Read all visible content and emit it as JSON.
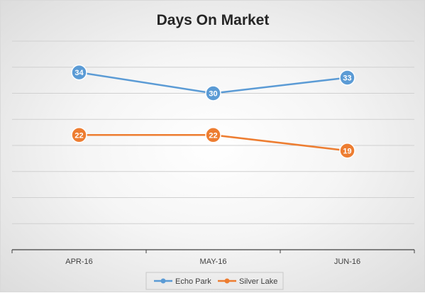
{
  "chart_data": {
    "type": "line",
    "title": "Days On Market",
    "categories": [
      "APR-16",
      "MAY-16",
      "JUN-16"
    ],
    "series": [
      {
        "name": "Echo Park",
        "values": [
          34,
          30,
          33
        ],
        "color": "#5b9bd5"
      },
      {
        "name": "Silver Lake",
        "values": [
          22,
          22,
          19
        ],
        "color": "#ed7d31"
      }
    ],
    "ylim": [
      0,
      40
    ],
    "grid": true,
    "show_y_axis_labels": false,
    "data_labels": true,
    "legend_position": "bottom"
  }
}
